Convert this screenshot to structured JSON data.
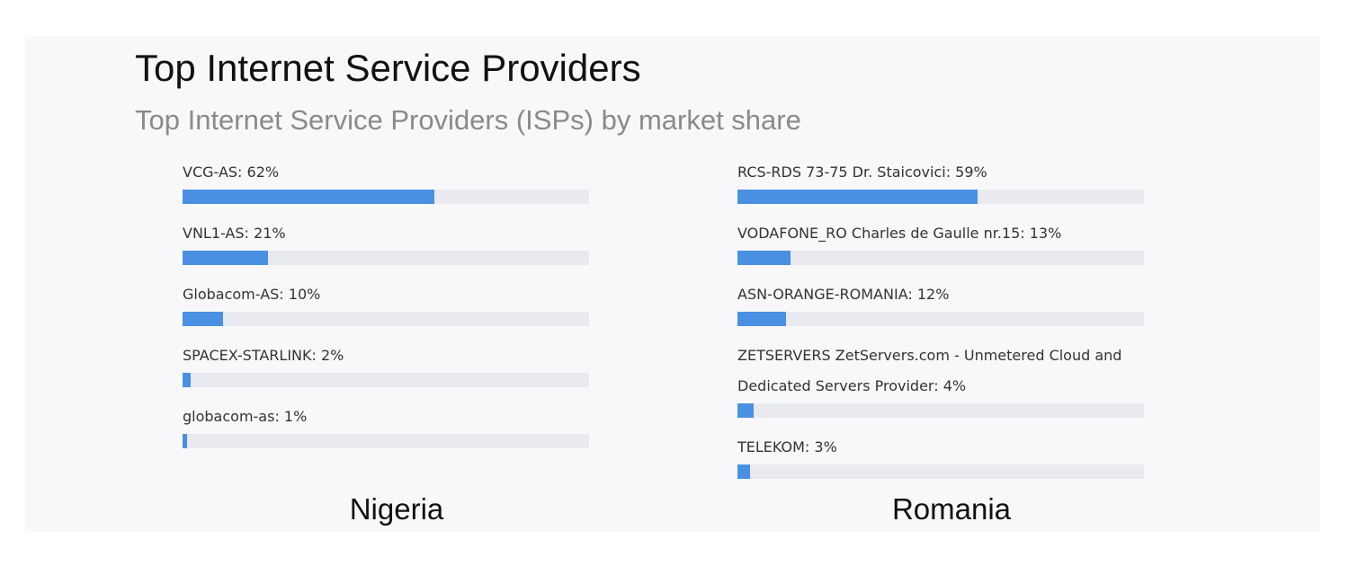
{
  "title": "Top Internet Service Providers",
  "subtitle": "Top Internet Service Providers (ISPs) by market share",
  "chart_data": [
    {
      "type": "bar",
      "orientation": "horizontal",
      "title": "Nigeria",
      "color": "#4a90e2",
      "track_color": "#e9eaef",
      "categories": [
        "VCG-AS: 62%",
        "VNL1-AS: 21%",
        "Globacom-AS: 10%",
        "SPACEX-STARLINK: 2%",
        "globacom-as: 1%"
      ],
      "values": [
        62,
        21,
        10,
        2,
        1
      ]
    },
    {
      "type": "bar",
      "orientation": "horizontal",
      "title": "Romania",
      "color": "#4a90e2",
      "track_color": "#e9eaef",
      "categories": [
        "RCS-RDS 73-75 Dr. Staicovici: 59%",
        "VODAFONE_RO Charles de Gaulle nr.15: 13%",
        "ASN-ORANGE-ROMANIA: 12%",
        "ZETSERVERS ZetServers.com - Unmetered Cloud and Dedicated Servers Provider: 4%",
        "TELEKOM: 3%"
      ],
      "values": [
        59,
        13,
        12,
        4,
        3
      ]
    }
  ]
}
